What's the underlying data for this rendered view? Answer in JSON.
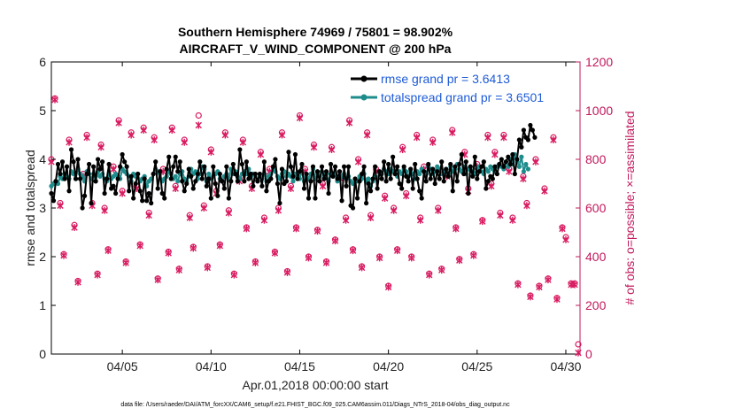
{
  "chart_data": {
    "type": "line",
    "title": "Southern Hemisphere 74969 / 75801 = 98.902%",
    "subtitle": "AIRCRAFT_V_WIND_COMPONENT @ 200 hPa",
    "xlabel": "Apr.01,2018 00:00:00 start",
    "ylabel": "rmse and totalspread",
    "y2label": "# of obs: o=possible; ×=assimilated",
    "xlim": [
      1,
      30.8
    ],
    "ylim": [
      0,
      6
    ],
    "y2lim": [
      0,
      1200
    ],
    "x_ticks": [
      5,
      10,
      15,
      20,
      25,
      30
    ],
    "x_tick_labels": [
      "04/05",
      "04/10",
      "04/15",
      "04/20",
      "04/25",
      "04/30"
    ],
    "y_ticks": [
      "0",
      "1",
      "2",
      "3",
      "4",
      "5",
      "6"
    ],
    "y2_ticks": [
      "0",
      "200",
      "400",
      "600",
      "800",
      "1000",
      "1200"
    ],
    "footnote": "data file: /Users/raeder/DAI/ATM_forcXX/CAM6_setup/f.e21.FHIST_BGC.f09_025.CAM6assim.011/Diags_NTrS_2018-04/obs_diag_output.nc",
    "series": [
      {
        "name": "rmse grand pr = 3.6413",
        "color": "#000000",
        "values": [
          3.3,
          3.15,
          3.55,
          3.9,
          3.7,
          3.95,
          3.6,
          3.85,
          3.35,
          4.2,
          3.95,
          3.6,
          4.0,
          3.6,
          3.0,
          3.25,
          3.7,
          3.9,
          3.1,
          3.85,
          3.55,
          4.0,
          3.8,
          3.95,
          3.3,
          3.6,
          3.9,
          3.4,
          3.45,
          3.3,
          3.6,
          3.85,
          4.1,
          3.95,
          3.85,
          3.35,
          3.65,
          3.2,
          3.5,
          3.7,
          3.35,
          3.15,
          3.6,
          3.15,
          3.3,
          3.1,
          3.7,
          3.95,
          3.4,
          3.75,
          3.3,
          3.2,
          3.8,
          4.05,
          3.6,
          3.85,
          4.05,
          3.75,
          3.95,
          3.55,
          3.35,
          3.5,
          3.8,
          3.65,
          3.4,
          3.55,
          3.7,
          3.95,
          3.6,
          3.85,
          3.45,
          3.6,
          3.2,
          3.85,
          3.5,
          3.25,
          3.7,
          3.55,
          3.4,
          3.85,
          3.2,
          3.55,
          3.9,
          3.7,
          3.55,
          4.2,
          3.9,
          3.55,
          3.95,
          3.6,
          3.7,
          3.45,
          3.7,
          3.55,
          3.7,
          3.45,
          3.95,
          3.35,
          3.55,
          3.6,
          3.85,
          4.0,
          3.5,
          3.1,
          3.8,
          3.5,
          3.55,
          4.15,
          3.85,
          3.65,
          4.1,
          3.6,
          3.75,
          3.9,
          3.4,
          3.7,
          3.2,
          3.55,
          3.85,
          3.2,
          3.75,
          3.55,
          3.85,
          3.6,
          3.75,
          3.3,
          3.9,
          3.65,
          3.85,
          3.6,
          3.75,
          3.15,
          3.85,
          3.45,
          3.85,
          3.05,
          3.0,
          3.6,
          3.2,
          3.55,
          3.7,
          3.85,
          3.1,
          3.5,
          3.35,
          3.6,
          3.85,
          3.4,
          3.75,
          3.6,
          3.95,
          3.55,
          3.9,
          3.6,
          4.05,
          3.7,
          3.85,
          3.5,
          3.4,
          3.85,
          3.65,
          3.55,
          3.8,
          3.4,
          3.9,
          3.6,
          3.35,
          3.2,
          3.75,
          3.55,
          3.9,
          3.6,
          3.8,
          3.5,
          3.75,
          3.6,
          3.95,
          3.55,
          3.8,
          3.65,
          3.9,
          3.35,
          3.85,
          3.55,
          3.9,
          4.1,
          3.7,
          3.95,
          3.3,
          3.85,
          3.65,
          4.05,
          3.6,
          3.75,
          3.85,
          3.95,
          3.4,
          3.55,
          3.65,
          3.6,
          3.85,
          3.7,
          3.9,
          4.0,
          3.85,
          3.95,
          4.05,
          3.9,
          4.1,
          3.7,
          4.0,
          4.4,
          4.25,
          4.6,
          4.45,
          4.4,
          4.7,
          4.6,
          4.45
        ],
        "cycles_per_point": 0.125,
        "start_x": 1.0
      },
      {
        "name": "totalspread grand pr = 3.6501",
        "color": "#1f8c8c",
        "values": [
          3.45,
          3.5,
          3.55,
          3.5,
          3.65,
          3.6,
          3.7,
          3.65,
          3.6,
          3.75,
          3.7,
          3.6,
          3.8,
          3.7,
          3.65,
          3.55,
          3.75,
          3.7,
          3.6,
          3.7,
          3.55,
          3.75,
          3.65,
          3.7,
          3.6,
          3.55,
          3.7,
          3.6,
          3.65,
          3.7,
          3.65,
          3.6,
          3.8,
          3.75,
          3.7,
          3.65,
          3.55,
          3.7,
          3.65,
          3.7,
          3.55,
          3.6,
          3.65,
          3.45,
          3.55,
          3.6,
          3.7,
          3.8,
          3.75,
          3.7,
          3.55,
          3.6,
          3.65,
          3.75,
          3.7,
          3.6,
          3.65,
          3.55,
          3.7,
          3.75,
          3.6,
          3.55,
          3.65,
          3.8,
          3.7,
          3.75,
          3.6,
          3.7,
          3.85,
          3.8,
          3.55,
          3.7,
          3.6,
          3.65,
          3.7,
          3.75,
          3.6,
          3.55,
          3.65,
          3.7,
          3.6,
          3.8,
          3.7,
          3.75,
          3.65,
          3.6,
          3.7,
          3.75,
          3.7,
          3.8,
          3.65,
          3.7,
          3.6,
          3.55,
          3.65,
          3.6,
          3.7,
          3.55,
          3.65,
          3.7,
          3.8,
          3.75,
          3.65,
          3.6,
          3.7,
          3.75,
          3.65,
          3.7,
          3.65,
          3.55,
          3.7,
          3.65,
          3.6,
          3.75,
          3.55,
          3.65,
          3.6,
          3.7,
          3.8,
          3.6,
          3.7,
          3.65,
          3.75,
          3.6,
          3.7,
          3.55,
          3.7,
          3.65,
          3.7,
          3.55,
          3.6,
          3.65,
          3.7,
          3.6,
          3.65,
          3.55,
          3.5,
          3.6,
          3.55,
          3.65,
          3.6,
          3.7,
          3.55,
          3.6,
          3.45,
          3.55,
          3.65,
          3.6,
          3.75,
          3.7,
          3.8,
          3.75,
          3.7,
          3.8,
          3.75,
          3.7,
          3.65,
          3.75,
          3.7,
          3.8,
          3.75,
          3.65,
          3.75,
          3.7,
          3.6,
          3.75,
          3.7,
          3.8,
          3.75,
          3.7,
          3.85,
          3.8,
          3.7,
          3.75,
          3.85,
          3.8,
          3.7,
          3.75,
          3.8,
          3.7,
          3.85,
          3.75,
          3.8,
          3.9,
          3.8,
          3.75,
          3.85,
          3.7,
          3.8,
          3.85,
          3.75,
          3.7,
          3.8,
          3.85,
          3.75,
          3.7,
          3.8,
          3.75,
          3.85,
          3.8,
          3.75,
          3.85,
          3.9,
          3.85,
          3.8,
          3.95,
          3.85,
          4.0,
          3.9,
          4.1,
          3.95,
          3.85,
          4.05,
          3.75,
          3.9,
          3.8
        ],
        "cycles_per_point": 0.125,
        "start_x": 1.0
      }
    ],
    "obs_possible": [
      [
        1.0,
        800
      ],
      [
        1.2,
        1050
      ],
      [
        1.5,
        620
      ],
      [
        1.7,
        410
      ],
      [
        2.0,
        880
      ],
      [
        2.3,
        530
      ],
      [
        2.5,
        300
      ],
      [
        2.8,
        740
      ],
      [
        3.0,
        900
      ],
      [
        3.3,
        620
      ],
      [
        3.6,
        330
      ],
      [
        3.8,
        860
      ],
      [
        4.0,
        600
      ],
      [
        4.2,
        430
      ],
      [
        4.5,
        770
      ],
      [
        4.8,
        960
      ],
      [
        5.0,
        670
      ],
      [
        5.2,
        380
      ],
      [
        5.5,
        910
      ],
      [
        5.8,
        690
      ],
      [
        6.0,
        450
      ],
      [
        6.2,
        930
      ],
      [
        6.5,
        580
      ],
      [
        6.8,
        890
      ],
      [
        7.0,
        310
      ],
      [
        7.3,
        760
      ],
      [
        7.6,
        420
      ],
      [
        7.8,
        930
      ],
      [
        8.0,
        690
      ],
      [
        8.2,
        350
      ],
      [
        8.5,
        880
      ],
      [
        8.8,
        570
      ],
      [
        9.0,
        440
      ],
      [
        9.3,
        980
      ],
      [
        9.6,
        610
      ],
      [
        9.8,
        360
      ],
      [
        10.0,
        840
      ],
      [
        10.3,
        670
      ],
      [
        10.5,
        450
      ],
      [
        10.8,
        910
      ],
      [
        11.0,
        590
      ],
      [
        11.3,
        330
      ],
      [
        11.6,
        720
      ],
      [
        11.8,
        880
      ],
      [
        12.0,
        520
      ],
      [
        12.3,
        690
      ],
      [
        12.5,
        380
      ],
      [
        12.8,
        830
      ],
      [
        13.0,
        560
      ],
      [
        13.3,
        760
      ],
      [
        13.6,
        420
      ],
      [
        13.8,
        600
      ],
      [
        14.0,
        910
      ],
      [
        14.3,
        340
      ],
      [
        14.5,
        690
      ],
      [
        14.8,
        520
      ],
      [
        15.0,
        980
      ],
      [
        15.3,
        760
      ],
      [
        15.5,
        400
      ],
      [
        15.8,
        860
      ],
      [
        16.0,
        510
      ],
      [
        16.3,
        700
      ],
      [
        16.5,
        380
      ],
      [
        16.8,
        850
      ],
      [
        17.0,
        470
      ],
      [
        17.3,
        730
      ],
      [
        17.6,
        560
      ],
      [
        17.8,
        960
      ],
      [
        18.0,
        430
      ],
      [
        18.3,
        800
      ],
      [
        18.5,
        360
      ],
      [
        18.8,
        910
      ],
      [
        19.0,
        570
      ],
      [
        19.3,
        760
      ],
      [
        19.5,
        400
      ],
      [
        19.8,
        650
      ],
      [
        20.0,
        280
      ],
      [
        20.3,
        600
      ],
      [
        20.5,
        430
      ],
      [
        20.8,
        850
      ],
      [
        21.0,
        660
      ],
      [
        21.3,
        400
      ],
      [
        21.6,
        900
      ],
      [
        21.8,
        560
      ],
      [
        22.0,
        770
      ],
      [
        22.3,
        330
      ],
      [
        22.5,
        880
      ],
      [
        22.8,
        600
      ],
      [
        23.0,
        350
      ],
      [
        23.3,
        740
      ],
      [
        23.6,
        920
      ],
      [
        23.8,
        520
      ],
      [
        24.0,
        390
      ],
      [
        24.3,
        830
      ],
      [
        24.5,
        680
      ],
      [
        24.8,
        410
      ],
      [
        25.0,
        780
      ],
      [
        25.3,
        550
      ],
      [
        25.6,
        900
      ],
      [
        25.8,
        700
      ],
      [
        26.0,
        830
      ],
      [
        26.3,
        580
      ],
      [
        26.5,
        900
      ],
      [
        26.8,
        760
      ],
      [
        27.0,
        560
      ],
      [
        27.3,
        290
      ],
      [
        27.6,
        730
      ],
      [
        27.8,
        620
      ],
      [
        28.0,
        240
      ],
      [
        28.3,
        800
      ],
      [
        28.5,
        280
      ],
      [
        28.8,
        680
      ],
      [
        29.0,
        310
      ],
      [
        29.3,
        890
      ],
      [
        29.5,
        230
      ],
      [
        29.8,
        520
      ],
      [
        30.0,
        480
      ],
      [
        30.3,
        290
      ],
      [
        30.5,
        290
      ],
      [
        30.7,
        40
      ]
    ],
    "obs_assimilated": [
      [
        1.0,
        790
      ],
      [
        1.2,
        1045
      ],
      [
        1.5,
        610
      ],
      [
        1.7,
        405
      ],
      [
        2.0,
        870
      ],
      [
        2.3,
        520
      ],
      [
        2.5,
        295
      ],
      [
        2.8,
        730
      ],
      [
        3.0,
        890
      ],
      [
        3.3,
        610
      ],
      [
        3.6,
        325
      ],
      [
        3.8,
        850
      ],
      [
        4.0,
        590
      ],
      [
        4.2,
        425
      ],
      [
        4.5,
        760
      ],
      [
        4.8,
        950
      ],
      [
        5.0,
        660
      ],
      [
        5.2,
        375
      ],
      [
        5.5,
        900
      ],
      [
        5.8,
        680
      ],
      [
        6.0,
        445
      ],
      [
        6.2,
        920
      ],
      [
        6.5,
        570
      ],
      [
        6.8,
        880
      ],
      [
        7.0,
        305
      ],
      [
        7.3,
        750
      ],
      [
        7.6,
        415
      ],
      [
        7.8,
        920
      ],
      [
        8.0,
        680
      ],
      [
        8.2,
        345
      ],
      [
        8.5,
        870
      ],
      [
        8.8,
        560
      ],
      [
        9.0,
        435
      ],
      [
        9.3,
        940
      ],
      [
        9.6,
        600
      ],
      [
        9.8,
        355
      ],
      [
        10.0,
        830
      ],
      [
        10.3,
        660
      ],
      [
        10.5,
        445
      ],
      [
        10.8,
        900
      ],
      [
        11.0,
        580
      ],
      [
        11.3,
        325
      ],
      [
        11.6,
        710
      ],
      [
        11.8,
        870
      ],
      [
        12.0,
        515
      ],
      [
        12.3,
        680
      ],
      [
        12.5,
        375
      ],
      [
        12.8,
        820
      ],
      [
        13.0,
        550
      ],
      [
        13.3,
        750
      ],
      [
        13.6,
        415
      ],
      [
        13.8,
        590
      ],
      [
        14.0,
        900
      ],
      [
        14.3,
        335
      ],
      [
        14.5,
        680
      ],
      [
        14.8,
        515
      ],
      [
        15.0,
        970
      ],
      [
        15.3,
        750
      ],
      [
        15.5,
        395
      ],
      [
        15.8,
        850
      ],
      [
        16.0,
        505
      ],
      [
        16.3,
        690
      ],
      [
        16.5,
        375
      ],
      [
        16.8,
        840
      ],
      [
        17.0,
        465
      ],
      [
        17.3,
        720
      ],
      [
        17.6,
        550
      ],
      [
        17.8,
        950
      ],
      [
        18.0,
        425
      ],
      [
        18.3,
        790
      ],
      [
        18.5,
        355
      ],
      [
        18.8,
        900
      ],
      [
        19.0,
        560
      ],
      [
        19.3,
        750
      ],
      [
        19.5,
        395
      ],
      [
        19.8,
        640
      ],
      [
        20.0,
        275
      ],
      [
        20.3,
        590
      ],
      [
        20.5,
        425
      ],
      [
        20.8,
        840
      ],
      [
        21.0,
        650
      ],
      [
        21.3,
        395
      ],
      [
        21.6,
        890
      ],
      [
        21.8,
        550
      ],
      [
        22.0,
        760
      ],
      [
        22.3,
        325
      ],
      [
        22.5,
        870
      ],
      [
        22.8,
        590
      ],
      [
        23.0,
        345
      ],
      [
        23.3,
        730
      ],
      [
        23.6,
        910
      ],
      [
        23.8,
        515
      ],
      [
        24.0,
        385
      ],
      [
        24.3,
        820
      ],
      [
        24.5,
        670
      ],
      [
        24.8,
        405
      ],
      [
        25.0,
        770
      ],
      [
        25.3,
        545
      ],
      [
        25.6,
        890
      ],
      [
        25.8,
        690
      ],
      [
        26.0,
        820
      ],
      [
        26.3,
        570
      ],
      [
        26.5,
        890
      ],
      [
        26.8,
        750
      ],
      [
        27.0,
        550
      ],
      [
        27.3,
        285
      ],
      [
        27.6,
        720
      ],
      [
        27.8,
        610
      ],
      [
        28.0,
        235
      ],
      [
        28.3,
        790
      ],
      [
        28.5,
        275
      ],
      [
        28.8,
        670
      ],
      [
        29.0,
        305
      ],
      [
        29.3,
        880
      ],
      [
        29.5,
        225
      ],
      [
        29.8,
        515
      ],
      [
        30.0,
        470
      ],
      [
        30.3,
        285
      ],
      [
        30.5,
        285
      ],
      [
        30.7,
        5
      ]
    ],
    "colors": {
      "rmse": "#000000",
      "spread": "#1f8c8c",
      "obs": "#d81b60",
      "right_axis": "#c2185b",
      "legend_text": "#1e5bd6"
    },
    "legend_position": "top-right",
    "grid": false
  }
}
